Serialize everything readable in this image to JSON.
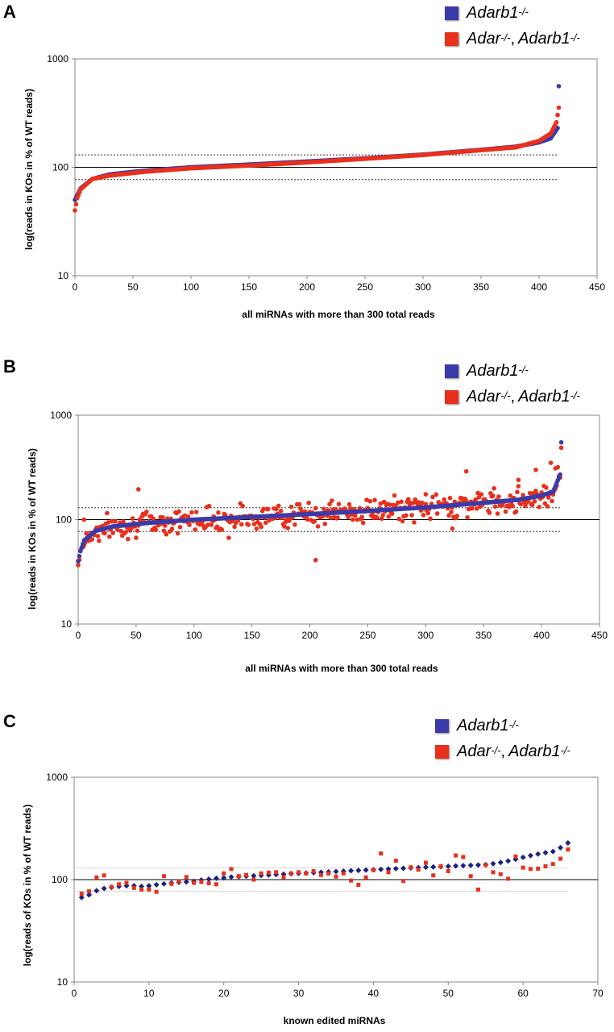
{
  "colors": {
    "blue": "#3a3aa8",
    "navy": "#1a237e",
    "red": "#e8301c",
    "axis": "#888888"
  },
  "legend": {
    "blue_base": "Adarb1",
    "blue_sup": "-/-",
    "red_base1": "Adar ",
    "red_sup1": "-/-",
    "red_sep": ",",
    "red_base2": "Adarb1",
    "red_sup2": "-/-"
  },
  "chart_data": [
    {
      "panel": "A",
      "type": "scatter",
      "xlabel": "all miRNAs with more than 300 total reads",
      "ylabel": "log(reads in KOs in % of WT reads)",
      "xlim": [
        0,
        450
      ],
      "xticks": [
        0,
        50,
        100,
        150,
        200,
        250,
        300,
        350,
        400,
        450
      ],
      "ylim": [
        10,
        1000
      ],
      "yscale": "log",
      "yticks": [
        10,
        100,
        1000
      ],
      "reference_lines": {
        "solid": 100,
        "dotted": [
          77,
          130
        ]
      },
      "n": 418,
      "series": [
        {
          "key": "blue",
          "mode": "sorted",
          "curve": [
            [
              0,
              50
            ],
            [
              5,
              64
            ],
            [
              15,
              78
            ],
            [
              30,
              86
            ],
            [
              60,
              93
            ],
            [
              100,
              100
            ],
            [
              150,
              106
            ],
            [
              200,
              113
            ],
            [
              250,
              121
            ],
            [
              300,
              131
            ],
            [
              350,
              145
            ],
            [
              380,
              155
            ],
            [
              400,
              170
            ],
            [
              410,
              185
            ],
            [
              416,
              230
            ],
            [
              417,
              560
            ]
          ]
        },
        {
          "key": "red",
          "mode": "sorted",
          "curve": [
            [
              0,
              40
            ],
            [
              2,
              52
            ],
            [
              5,
              63
            ],
            [
              15,
              78
            ],
            [
              30,
              84
            ],
            [
              60,
              91
            ],
            [
              100,
              98
            ],
            [
              150,
              104
            ],
            [
              200,
              111
            ],
            [
              250,
              120
            ],
            [
              300,
              130
            ],
            [
              350,
              144
            ],
            [
              380,
              153
            ],
            [
              400,
              175
            ],
            [
              410,
              205
            ],
            [
              415,
              260
            ],
            [
              417,
              355
            ]
          ]
        }
      ]
    },
    {
      "panel": "B",
      "type": "scatter",
      "xlabel": "all miRNAs with more than 300 total reads",
      "ylabel": "log(reads in KOs in % of WT reads)",
      "xlim": [
        0,
        450
      ],
      "xticks": [
        0,
        50,
        100,
        150,
        200,
        250,
        300,
        350,
        400,
        450
      ],
      "ylim": [
        10,
        1000
      ],
      "yscale": "log",
      "yticks": [
        10,
        100,
        1000
      ],
      "reference_lines": {
        "solid": 100,
        "dotted": [
          77,
          130
        ]
      },
      "n": 418,
      "series": [
        {
          "key": "blue",
          "mode": "sorted",
          "curve": [
            [
              0,
              40
            ],
            [
              2,
              50
            ],
            [
              5,
              63
            ],
            [
              15,
              78
            ],
            [
              30,
              86
            ],
            [
              60,
              93
            ],
            [
              100,
              100
            ],
            [
              150,
              106
            ],
            [
              200,
              113
            ],
            [
              250,
              121
            ],
            [
              300,
              131
            ],
            [
              350,
              145
            ],
            [
              380,
              155
            ],
            [
              400,
              170
            ],
            [
              410,
              185
            ],
            [
              416,
              270
            ],
            [
              417,
              550
            ]
          ]
        },
        {
          "key": "red",
          "mode": "scattered",
          "spread": 0.13,
          "seed": 7,
          "base_key": "blue",
          "outliers": [
            [
              52,
              195
            ],
            [
              205,
              41
            ],
            [
              335,
              290
            ],
            [
              300,
              175
            ],
            [
              380,
              240
            ],
            [
              408,
              350
            ],
            [
              412,
              310
            ],
            [
              415,
              260
            ],
            [
              130,
              67
            ],
            [
              323,
              82
            ],
            [
              5,
              100
            ],
            [
              395,
              300
            ]
          ]
        }
      ]
    },
    {
      "panel": "C",
      "type": "scatter",
      "xlabel": "known edited miRNAs",
      "ylabel": "log(reads of KOs in % of WT reads)",
      "xlim": [
        0,
        70
      ],
      "xticks": [
        0,
        10,
        20,
        30,
        40,
        50,
        60,
        70
      ],
      "ylim": [
        10,
        1000
      ],
      "yscale": "log",
      "yticks": [
        10,
        100,
        1000
      ],
      "reference_lines": {
        "solid": 100,
        "faint": [
          77,
          130
        ]
      },
      "series": [
        {
          "key": "navy",
          "marker": "diamond",
          "x": [
            1,
            2,
            3,
            4,
            5,
            6,
            7,
            8,
            9,
            10,
            11,
            12,
            13,
            14,
            15,
            16,
            17,
            18,
            19,
            20,
            21,
            22,
            23,
            24,
            25,
            26,
            27,
            28,
            29,
            30,
            31,
            32,
            33,
            34,
            35,
            36,
            37,
            38,
            39,
            40,
            41,
            42,
            43,
            44,
            45,
            46,
            47,
            48,
            49,
            50,
            51,
            52,
            53,
            54,
            55,
            56,
            57,
            58,
            59,
            60,
            61,
            62,
            63,
            64,
            65,
            66
          ],
          "y": [
            67,
            71,
            78,
            82,
            84,
            86,
            87,
            87,
            86,
            87,
            89,
            91,
            93,
            94,
            95,
            96,
            99,
            101,
            103,
            104,
            106,
            107,
            108,
            109,
            110,
            111,
            112,
            113,
            114,
            115,
            116,
            117,
            118,
            119,
            120,
            121,
            122,
            123,
            124,
            125,
            126,
            127,
            128,
            129,
            130,
            131,
            132,
            133,
            134,
            135,
            136,
            137,
            138,
            139,
            140,
            143,
            147,
            152,
            158,
            165,
            172,
            178,
            183,
            188,
            205,
            228
          ]
        },
        {
          "key": "red",
          "marker": "square",
          "x": [
            1,
            2,
            3,
            4,
            5,
            6,
            7,
            8,
            9,
            10,
            11,
            12,
            13,
            14,
            15,
            16,
            17,
            18,
            19,
            20,
            21,
            22,
            23,
            24,
            25,
            26,
            27,
            28,
            29,
            30,
            31,
            32,
            33,
            34,
            35,
            36,
            37,
            38,
            39,
            40,
            41,
            42,
            43,
            44,
            45,
            46,
            47,
            48,
            49,
            50,
            51,
            52,
            53,
            54,
            55,
            56,
            57,
            58,
            59,
            60,
            61,
            62,
            63,
            64,
            65,
            66
          ],
          "y": [
            73,
            77,
            105,
            110,
            85,
            90,
            93,
            83,
            80,
            80,
            76,
            108,
            91,
            96,
            106,
            93,
            95,
            92,
            90,
            115,
            127,
            108,
            111,
            100,
            115,
            117,
            118,
            106,
            115,
            118,
            115,
            121,
            111,
            115,
            107,
            115,
            98,
            89,
            105,
            124,
            180,
            118,
            153,
            97,
            132,
            125,
            146,
            110,
            135,
            121,
            172,
            166,
            108,
            80,
            139,
            118,
            113,
            102,
            168,
            131,
            127,
            128,
            135,
            142,
            160,
            197
          ]
        }
      ]
    }
  ]
}
